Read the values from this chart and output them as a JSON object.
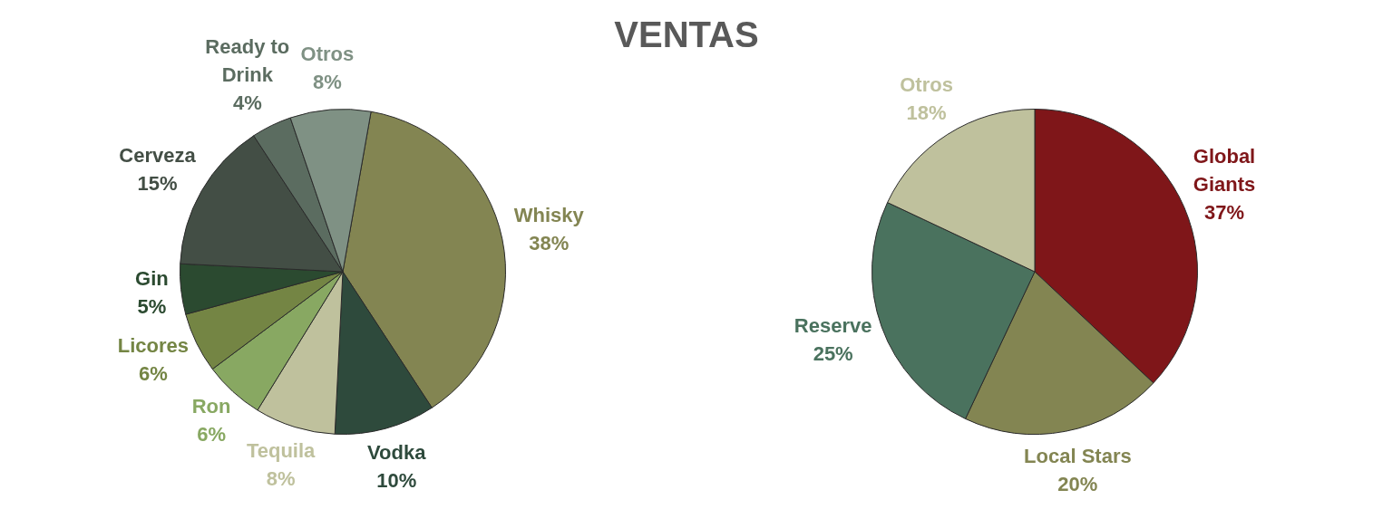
{
  "chart_data": [
    {
      "type": "pie",
      "title": "VENTAS",
      "categories": [
        "Whisky",
        "Vodka",
        "Tequila",
        "Ron",
        "Licores",
        "Gin",
        "Cerveza",
        "Ready to Drink",
        "Otros"
      ],
      "values": [
        38,
        10,
        8,
        6,
        6,
        5,
        15,
        4,
        8
      ],
      "value_labels": [
        "38%",
        "10%",
        "8%",
        "6%",
        "6%",
        "5%",
        "15%",
        "4%",
        "8%"
      ],
      "colors": [
        "#838552",
        "#2e4a3c",
        "#bfc19d",
        "#88a862",
        "#748544",
        "#2b4a30",
        "#434e45",
        "#5b6c60",
        "#7f9184"
      ]
    },
    {
      "type": "pie",
      "categories": [
        "Global Giants",
        "Local Stars",
        "Reserve",
        "Otros"
      ],
      "values": [
        37,
        20,
        25,
        18
      ],
      "value_labels": [
        "37%",
        "20%",
        "25%",
        "18%"
      ],
      "colors": [
        "#7f1619",
        "#838552",
        "#4a725e",
        "#bfc19d"
      ]
    }
  ]
}
